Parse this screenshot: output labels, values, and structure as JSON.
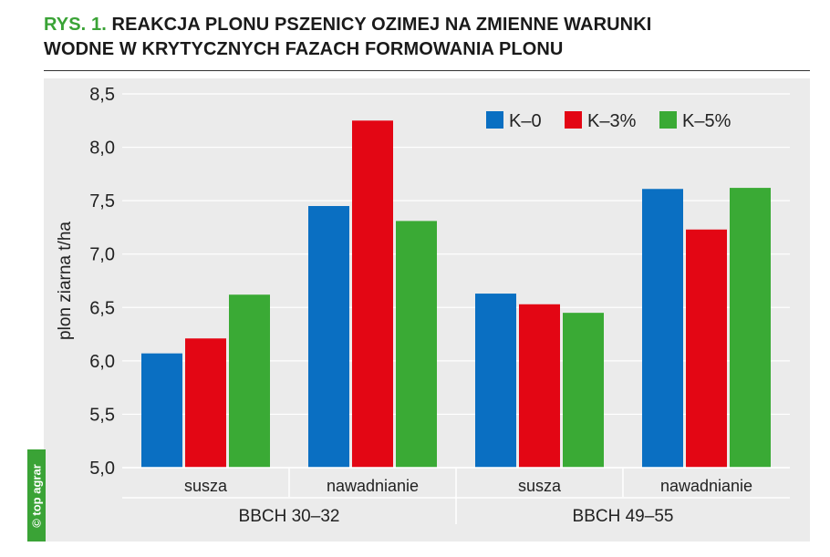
{
  "header": {
    "prefix": "RYS. 1.",
    "title_line1": "REAKCJA PLONU PSZENICY OZIMEJ NA ZMIENNE WARUNKI",
    "title_line2": "WODNE W KRYTYCZNYCH FAZACH FORMOWANIA PLONU"
  },
  "watermark": "© top agrar",
  "colors": {
    "accent": "#3aa336",
    "panel": "#ebebeb"
  },
  "chart_data": {
    "type": "bar",
    "ylabel": "plon ziarna t/ha",
    "ylim": [
      5.0,
      8.5
    ],
    "yticks": [
      "5,0",
      "5,5",
      "6,0",
      "6,5",
      "7,0",
      "7,5",
      "8,0",
      "8,5"
    ],
    "categories": [
      "susza",
      "nawadnianie",
      "susza",
      "nawadnianie"
    ],
    "groups": [
      {
        "label": "BBCH 30–32",
        "categories": [
          0,
          1
        ]
      },
      {
        "label": "BBCH 49–55",
        "categories": [
          2,
          3
        ]
      }
    ],
    "series": [
      {
        "name": "K–0",
        "color": "#0a6fc2",
        "values": [
          6.07,
          7.45,
          6.63,
          7.61
        ]
      },
      {
        "name": "K–3%",
        "color": "#e30614",
        "values": [
          6.21,
          8.25,
          6.53,
          7.23
        ]
      },
      {
        "name": "K–5%",
        "color": "#3aaa35",
        "values": [
          6.62,
          7.31,
          6.45,
          7.62
        ]
      }
    ],
    "legend_position": "top-right",
    "grid": true
  }
}
